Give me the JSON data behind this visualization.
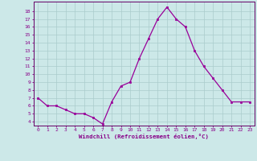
{
  "x": [
    0,
    1,
    2,
    3,
    4,
    5,
    6,
    7,
    8,
    9,
    10,
    11,
    12,
    13,
    14,
    15,
    16,
    17,
    18,
    19,
    20,
    21,
    22,
    23
  ],
  "y": [
    7,
    6,
    6,
    5.5,
    5,
    5,
    4.5,
    3.7,
    6.5,
    8.5,
    9,
    12,
    14.5,
    17,
    18.5,
    17,
    16,
    13,
    11,
    9.5,
    8,
    6.5,
    6.5,
    6.5
  ],
  "xlabel": "Windchill (Refroidissement éolien,°C)",
  "ylabel": "",
  "ylim": [
    3.5,
    19.2
  ],
  "xlim": [
    -0.5,
    23.5
  ],
  "yticks": [
    4,
    5,
    6,
    7,
    8,
    9,
    10,
    11,
    12,
    13,
    14,
    15,
    16,
    17,
    18
  ],
  "xticks": [
    0,
    1,
    2,
    3,
    4,
    5,
    6,
    7,
    8,
    9,
    10,
    11,
    12,
    13,
    14,
    15,
    16,
    17,
    18,
    19,
    20,
    21,
    22,
    23
  ],
  "line_color": "#990099",
  "marker_color": "#990099",
  "bg_color": "#cce8e8",
  "plot_bg_color": "#cce8e8",
  "grid_color": "#aacccc",
  "axis_color": "#660066",
  "tick_color": "#880088",
  "label_color": "#880088"
}
